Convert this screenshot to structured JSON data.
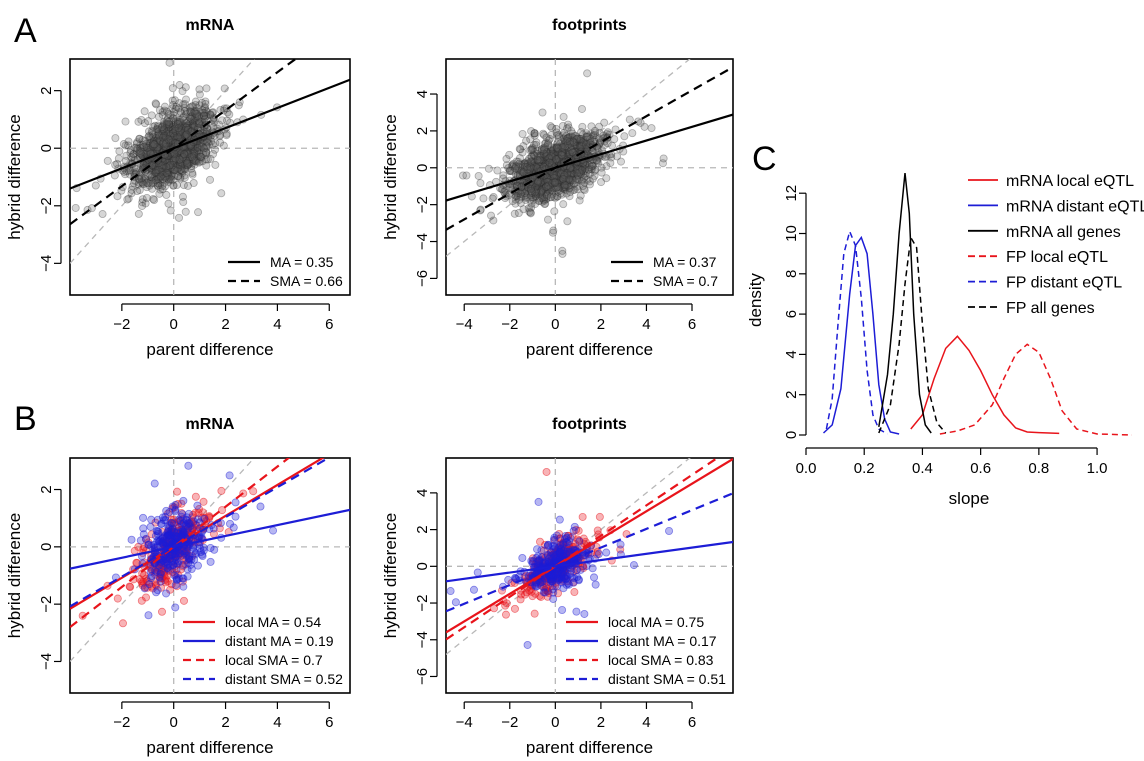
{
  "panel_letters": [
    "A",
    "B",
    "C"
  ],
  "xlabel_scatter": "parent difference",
  "ylabel_scatter": "hybrid difference",
  "colors": {
    "black": "#000000",
    "red": "#e8141b",
    "blue": "#1d1dd6",
    "grey": "#b8b8b8"
  },
  "chart_data": [
    {
      "id": "A-mRNA",
      "type": "scatter",
      "panel": "A",
      "title": "mRNA",
      "xlabel": "parent difference",
      "ylabel": "hybrid difference",
      "xlim": [
        -4,
        6.8
      ],
      "ylim": [
        -5.1,
        3.1
      ],
      "xticks": [
        -2,
        0,
        2,
        4,
        6
      ],
      "yticks": [
        -4,
        -2,
        0,
        2
      ],
      "point_color": "#000000",
      "n_points": 1400,
      "lines": [
        {
          "name": "MA = 0.35",
          "slope": 0.35,
          "color": "#000000",
          "dash": false
        },
        {
          "name": "SMA = 0.66",
          "slope": 0.66,
          "color": "#000000",
          "dash": true
        }
      ]
    },
    {
      "id": "A-footprints",
      "type": "scatter",
      "panel": "A",
      "title": "footprints",
      "xlabel": "parent difference",
      "ylabel": "hybrid difference",
      "xlim": [
        -4.8,
        7.8
      ],
      "ylim": [
        -6.9,
        5.9
      ],
      "xticks": [
        -4,
        -2,
        0,
        2,
        4,
        6
      ],
      "yticks": [
        -6,
        -4,
        -2,
        0,
        2,
        4
      ],
      "point_color": "#000000",
      "n_points": 1400,
      "lines": [
        {
          "name": "MA = 0.37",
          "slope": 0.37,
          "color": "#000000",
          "dash": false
        },
        {
          "name": "SMA = 0.7",
          "slope": 0.7,
          "color": "#000000",
          "dash": true
        }
      ]
    },
    {
      "id": "B-mRNA",
      "type": "scatter",
      "panel": "B",
      "title": "mRNA",
      "xlabel": "parent difference",
      "ylabel": "hybrid difference",
      "xlim": [
        -4,
        6.8
      ],
      "ylim": [
        -5.1,
        3.1
      ],
      "xticks": [
        -2,
        0,
        2,
        4,
        6
      ],
      "yticks": [
        -4,
        -2,
        0,
        2
      ],
      "groups": [
        {
          "name": "local",
          "color": "#e8141b",
          "n": 300,
          "slope": 0.7
        },
        {
          "name": "distant",
          "color": "#1d1dd6",
          "n": 300,
          "slope": 0.3
        }
      ],
      "lines": [
        {
          "name": "local MA = 0.54",
          "slope": 0.54,
          "color": "#e8141b",
          "dash": false
        },
        {
          "name": "distant MA = 0.19",
          "slope": 0.19,
          "color": "#1d1dd6",
          "dash": false
        },
        {
          "name": "local SMA = 0.7",
          "slope": 0.7,
          "color": "#e8141b",
          "dash": true
        },
        {
          "name": "distant SMA = 0.52",
          "slope": 0.52,
          "color": "#1d1dd6",
          "dash": true
        }
      ]
    },
    {
      "id": "B-footprints",
      "type": "scatter",
      "panel": "B",
      "title": "footprints",
      "xlabel": "parent difference",
      "ylabel": "hybrid difference",
      "xlim": [
        -4.8,
        7.8
      ],
      "ylim": [
        -6.9,
        5.9
      ],
      "xticks": [
        -4,
        -2,
        0,
        2,
        4,
        6
      ],
      "yticks": [
        -6,
        -4,
        -2,
        0,
        2,
        4
      ],
      "groups": [
        {
          "name": "local",
          "color": "#e8141b",
          "n": 300,
          "slope": 0.8
        },
        {
          "name": "distant",
          "color": "#1d1dd6",
          "n": 300,
          "slope": 0.3
        }
      ],
      "lines": [
        {
          "name": "local MA = 0.75",
          "slope": 0.75,
          "color": "#e8141b",
          "dash": false
        },
        {
          "name": "distant MA = 0.17",
          "slope": 0.17,
          "color": "#1d1dd6",
          "dash": false
        },
        {
          "name": "local SMA = 0.83",
          "slope": 0.83,
          "color": "#e8141b",
          "dash": true
        },
        {
          "name": "distant SMA = 0.51",
          "slope": 0.51,
          "color": "#1d1dd6",
          "dash": true
        }
      ]
    },
    {
      "id": "C-density",
      "type": "line",
      "panel": "C",
      "xlabel": "slope",
      "ylabel": "density",
      "xlim": [
        0.0,
        1.12
      ],
      "ylim": [
        0,
        13.4
      ],
      "xticks": [
        0.0,
        0.2,
        0.4,
        0.6,
        0.8,
        1.0
      ],
      "yticks": [
        0,
        2,
        4,
        6,
        8,
        10,
        12
      ],
      "legend_position": "top-right",
      "series": [
        {
          "name": "mRNA local eQTL",
          "color": "#e8141b",
          "dash": false,
          "x": [
            0.36,
            0.4,
            0.44,
            0.48,
            0.52,
            0.56,
            0.6,
            0.64,
            0.68,
            0.72,
            0.76,
            0.8,
            0.87
          ],
          "y": [
            0.3,
            1.0,
            2.8,
            4.3,
            4.9,
            4.2,
            3.2,
            2.0,
            1.0,
            0.35,
            0.15,
            0.12,
            0.08
          ]
        },
        {
          "name": "mRNA distant eQTL",
          "color": "#1d1dd6",
          "dash": false,
          "x": [
            0.06,
            0.09,
            0.12,
            0.15,
            0.17,
            0.19,
            0.21,
            0.23,
            0.25,
            0.27,
            0.29,
            0.32
          ],
          "y": [
            0.1,
            0.5,
            2.3,
            7.0,
            9.4,
            9.8,
            9.0,
            6.0,
            2.5,
            0.8,
            0.15,
            0.05
          ]
        },
        {
          "name": "mRNA all genes",
          "color": "#000000",
          "dash": false,
          "x": [
            0.25,
            0.28,
            0.3,
            0.32,
            0.34,
            0.355,
            0.37,
            0.39,
            0.41,
            0.43
          ],
          "y": [
            0.4,
            3.0,
            6.0,
            10.0,
            13.0,
            11.0,
            6.0,
            2.0,
            0.5,
            0.1
          ]
        },
        {
          "name": "FP local eQTL",
          "color": "#e8141b",
          "dash": true,
          "x": [
            0.46,
            0.52,
            0.58,
            0.64,
            0.68,
            0.72,
            0.76,
            0.8,
            0.84,
            0.88,
            0.93,
            1.0,
            1.12
          ],
          "y": [
            0.05,
            0.2,
            0.5,
            1.5,
            2.8,
            4.0,
            4.5,
            4.1,
            2.8,
            1.2,
            0.3,
            0.05,
            0.0
          ]
        },
        {
          "name": "FP distant eQTL",
          "color": "#1d1dd6",
          "dash": true,
          "x": [
            0.07,
            0.09,
            0.11,
            0.13,
            0.15,
            0.17,
            0.19,
            0.21,
            0.23,
            0.25,
            0.28
          ],
          "y": [
            0.3,
            1.8,
            5.5,
            9.0,
            10.1,
            9.4,
            6.8,
            3.2,
            1.0,
            0.3,
            0.05
          ]
        },
        {
          "name": "FP all genes",
          "color": "#000000",
          "dash": true,
          "x": [
            0.25,
            0.29,
            0.32,
            0.34,
            0.36,
            0.38,
            0.4,
            0.42,
            0.45,
            0.48
          ],
          "y": [
            0.1,
            1.5,
            4.5,
            7.5,
            9.8,
            9.3,
            5.5,
            2.3,
            0.6,
            0.1
          ]
        }
      ]
    }
  ]
}
